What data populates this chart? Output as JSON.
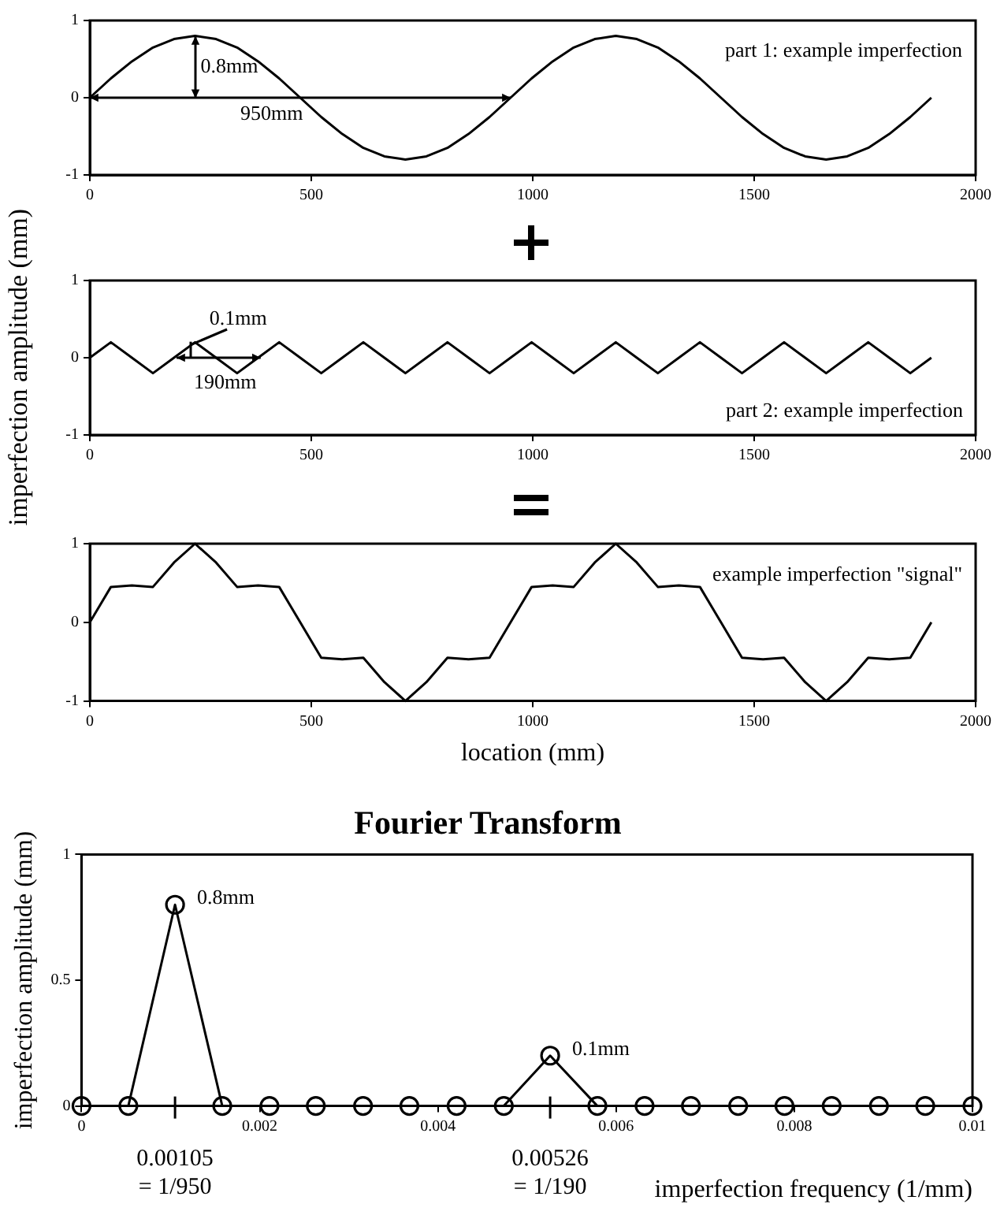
{
  "chart_data": [
    {
      "type": "line",
      "marker": "none",
      "xlim": [
        0,
        2000
      ],
      "xticks": [
        0,
        500,
        1000,
        1500,
        2000
      ],
      "ylim": [
        -1,
        1
      ],
      "yticks": [
        -1,
        0,
        1
      ],
      "annotations": [
        "0.8mm",
        "950mm",
        "part 1: example imperfection"
      ],
      "x": [
        0,
        47.5,
        95,
        142.5,
        190,
        237.5,
        285,
        332.5,
        380,
        427.5,
        475,
        522.5,
        570,
        617.5,
        665,
        712.5,
        760,
        807.5,
        855,
        902.5,
        950,
        997.5,
        1045,
        1092.5,
        1140,
        1187.5,
        1235,
        1282.5,
        1330,
        1377.5,
        1425,
        1472.5,
        1520,
        1567.5,
        1615,
        1662.5,
        1710,
        1757.5,
        1805,
        1852.5,
        1900
      ],
      "series": [
        {
          "color": "#000000",
          "values": [
            0,
            0.25,
            0.47,
            0.65,
            0.76,
            0.8,
            0.76,
            0.65,
            0.47,
            0.25,
            0,
            -0.25,
            -0.47,
            -0.65,
            -0.76,
            -0.8,
            -0.76,
            -0.65,
            -0.47,
            -0.25,
            0,
            0.25,
            0.47,
            0.65,
            0.76,
            0.8,
            0.76,
            0.65,
            0.47,
            0.25,
            0,
            -0.25,
            -0.47,
            -0.65,
            -0.76,
            -0.8,
            -0.76,
            -0.65,
            -0.47,
            -0.25,
            0
          ]
        }
      ]
    },
    {
      "type": "line",
      "marker": "none",
      "ylabel": "imperfection amplitude (mm)",
      "xlim": [
        0,
        2000
      ],
      "xticks": [
        0,
        500,
        1000,
        1500,
        2000
      ],
      "ylim": [
        -1,
        1
      ],
      "yticks": [
        -1,
        0,
        1
      ],
      "annotations": [
        "0.1mm",
        "190mm",
        "part 2: example imperfection"
      ],
      "x": [
        0,
        47.5,
        95,
        142.5,
        190,
        237.5,
        285,
        332.5,
        380,
        427.5,
        475,
        522.5,
        570,
        617.5,
        665,
        712.5,
        760,
        807.5,
        855,
        902.5,
        950,
        997.5,
        1045,
        1092.5,
        1140,
        1187.5,
        1235,
        1282.5,
        1330,
        1377.5,
        1425,
        1472.5,
        1520,
        1567.5,
        1615,
        1662.5,
        1710,
        1757.5,
        1805,
        1852.5,
        1900
      ],
      "series": [
        {
          "color": "#000000",
          "values": [
            0,
            0.2,
            0,
            -0.2,
            0,
            0.2,
            0,
            -0.2,
            0,
            0.2,
            0,
            -0.2,
            0,
            0.2,
            0,
            -0.2,
            0,
            0.2,
            0,
            -0.2,
            0,
            0.2,
            0,
            -0.2,
            0,
            0.2,
            0,
            -0.2,
            0,
            0.2,
            0,
            -0.2,
            0,
            0.2,
            0,
            -0.2,
            0,
            0.2,
            0,
            -0.2,
            0
          ]
        }
      ]
    },
    {
      "type": "line",
      "marker": "none",
      "xlabel": "location (mm)",
      "xlim": [
        0,
        2000
      ],
      "xticks": [
        0,
        500,
        1000,
        1500,
        2000
      ],
      "ylim": [
        -1,
        1
      ],
      "yticks": [
        -1,
        0,
        1
      ],
      "annotations": [
        "example imperfection \"signal\""
      ],
      "x": [
        0,
        47.5,
        95,
        142.5,
        190,
        237.5,
        285,
        332.5,
        380,
        427.5,
        475,
        522.5,
        570,
        617.5,
        665,
        712.5,
        760,
        807.5,
        855,
        902.5,
        950,
        997.5,
        1045,
        1092.5,
        1140,
        1187.5,
        1235,
        1282.5,
        1330,
        1377.5,
        1425,
        1472.5,
        1520,
        1567.5,
        1615,
        1662.5,
        1710,
        1757.5,
        1805,
        1852.5,
        1900
      ],
      "series": [
        {
          "color": "#000000",
          "values": [
            0,
            0.45,
            0.47,
            0.45,
            0.76,
            1,
            0.76,
            0.45,
            0.47,
            0.45,
            0,
            -0.45,
            -0.47,
            -0.45,
            -0.76,
            -1,
            -0.76,
            -0.45,
            -0.47,
            -0.45,
            0,
            0.45,
            0.47,
            0.45,
            0.76,
            1,
            0.76,
            0.45,
            0.47,
            0.45,
            0,
            -0.45,
            -0.47,
            -0.45,
            -0.76,
            -1,
            -0.76,
            -0.45,
            -0.47,
            -0.45,
            0
          ]
        }
      ]
    },
    {
      "type": "line",
      "marker": "circle",
      "title": "Fourier Transform",
      "xlabel": "imperfection frequency (1/mm)",
      "ylabel": "imperfection amplitude (mm)",
      "xlim": [
        0,
        0.01
      ],
      "xticks": [
        0,
        0.002,
        0.004,
        0.006,
        0.008,
        0.01
      ],
      "ylim": [
        0,
        1
      ],
      "yticks": [
        0,
        0.5,
        1
      ],
      "annotations": [
        {
          "text": "0.8mm",
          "x": 0.00105,
          "y": 0.8
        },
        {
          "text": "0.1mm",
          "x": 0.00526,
          "y": 0.2
        },
        "0.00105\n= 1/950",
        "0.00526\n= 1/190"
      ],
      "x": [
        0,
        0.000526,
        0.00105,
        0.00158,
        0.00211,
        0.00263,
        0.00316,
        0.00368,
        0.00421,
        0.00474,
        0.00526,
        0.00579,
        0.00632,
        0.00684,
        0.00737,
        0.00789,
        0.00842,
        0.00895,
        0.00947,
        0.01
      ],
      "series": [
        {
          "color": "#000000",
          "values": [
            0,
            0,
            0.8,
            0,
            0,
            0,
            0,
            0,
            0,
            0,
            0.2,
            0,
            0,
            0,
            0,
            0,
            0,
            0,
            0,
            0
          ]
        }
      ]
    }
  ]
}
